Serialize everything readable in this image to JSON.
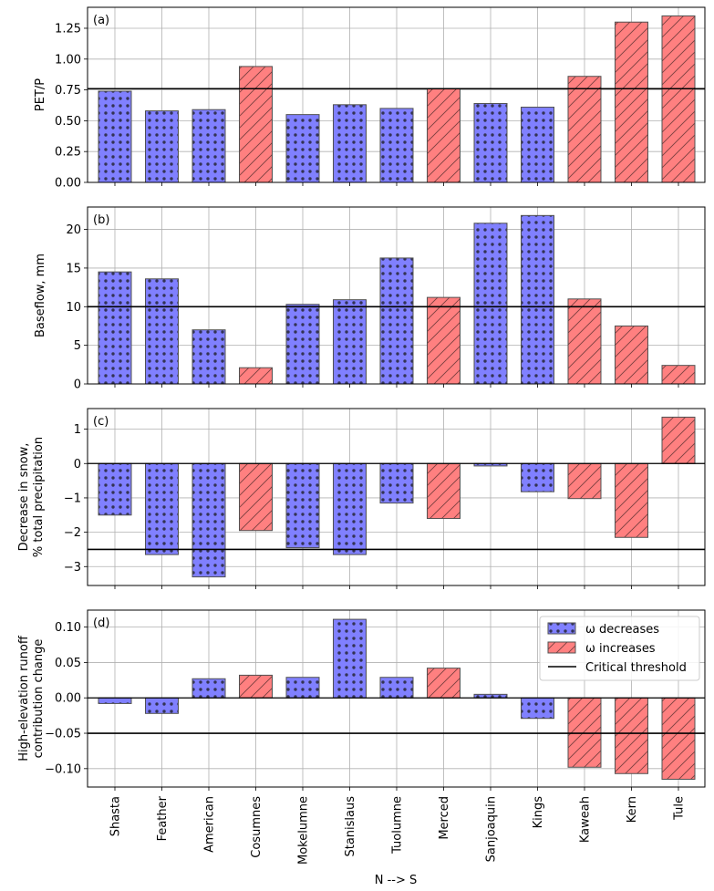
{
  "chart_data": {
    "type": "bar",
    "shared_xlabel": "N --> S",
    "categories": [
      "Shasta",
      "Feather",
      "American",
      "Cosumnes",
      "Mokelumne",
      "Stanislaus",
      "Tuolumne",
      "Merced",
      "Sanjoaquin",
      "Kings",
      "Kaweah",
      "Kern",
      "Tule"
    ],
    "omega_change": [
      "decreases",
      "decreases",
      "decreases",
      "increases",
      "decreases",
      "decreases",
      "decreases",
      "increases",
      "decreases",
      "decreases",
      "increases",
      "increases",
      "increases"
    ],
    "colors": {
      "omega_decreases": "#8080ff",
      "omega_increases": "#ff8080",
      "bar_edge": "#505050",
      "critical_threshold": "#000000",
      "grid": "#b0b0b0"
    },
    "legend": {
      "position": "top-right",
      "panel": "d",
      "entries": [
        {
          "key": "omega_decreases",
          "label": "ω decreases",
          "pattern": "dots"
        },
        {
          "key": "omega_increases",
          "label": "ω increases",
          "pattern": "hatch"
        },
        {
          "key": "critical_threshold",
          "label": "Critical threshold",
          "pattern": "line"
        }
      ]
    },
    "panels": [
      {
        "id": "a",
        "panel_label": "(a)",
        "ylabel": [
          "PET/P"
        ],
        "values": [
          0.74,
          0.58,
          0.59,
          0.94,
          0.55,
          0.63,
          0.6,
          0.76,
          0.64,
          0.61,
          0.86,
          1.3,
          1.35
        ],
        "threshold": 0.76,
        "ylim": [
          0,
          1.42
        ],
        "yticks": [
          0.0,
          0.25,
          0.5,
          0.75,
          1.0,
          1.25
        ],
        "ytick_labels": [
          "0.00",
          "0.25",
          "0.50",
          "0.75",
          "1.00",
          "1.25"
        ],
        "grid": true
      },
      {
        "id": "b",
        "panel_label": "(b)",
        "ylabel": [
          "Baseflow, mm"
        ],
        "values": [
          14.5,
          13.6,
          7.0,
          2.1,
          10.3,
          10.9,
          16.3,
          11.2,
          20.8,
          21.8,
          11.0,
          7.5,
          2.4
        ],
        "threshold": 10.0,
        "ylim": [
          0,
          22.9
        ],
        "yticks": [
          0,
          5,
          10,
          15,
          20
        ],
        "ytick_labels": [
          "0",
          "5",
          "10",
          "15",
          "20"
        ],
        "grid": true
      },
      {
        "id": "c",
        "panel_label": "(c)",
        "ylabel": [
          "Decrease in snow,",
          "% total precipitation"
        ],
        "values": [
          -1.5,
          -2.65,
          -3.3,
          -1.95,
          -2.45,
          -2.65,
          -1.15,
          -1.6,
          -0.07,
          -0.82,
          -1.02,
          -2.15,
          1.35
        ],
        "threshold": -2.5,
        "ylim": [
          -3.55,
          1.6
        ],
        "yticks": [
          -3,
          -2,
          -1,
          0,
          1
        ],
        "ytick_labels": [
          "−3",
          "−2",
          "−1",
          "0",
          "1"
        ],
        "grid": true
      },
      {
        "id": "d",
        "panel_label": "(d)",
        "ylabel": [
          "High-elevation runoff",
          "contribution change"
        ],
        "values": [
          -0.008,
          -0.022,
          0.027,
          0.032,
          0.029,
          0.111,
          0.029,
          0.042,
          0.005,
          -0.029,
          -0.098,
          -0.107,
          -0.115
        ],
        "threshold": -0.05,
        "ylim": [
          -0.126,
          0.124
        ],
        "yticks": [
          -0.1,
          -0.05,
          0.0,
          0.05,
          0.1
        ],
        "ytick_labels": [
          "−0.10",
          "−0.05",
          "0.00",
          "0.05",
          "0.10"
        ],
        "grid": true
      }
    ]
  }
}
